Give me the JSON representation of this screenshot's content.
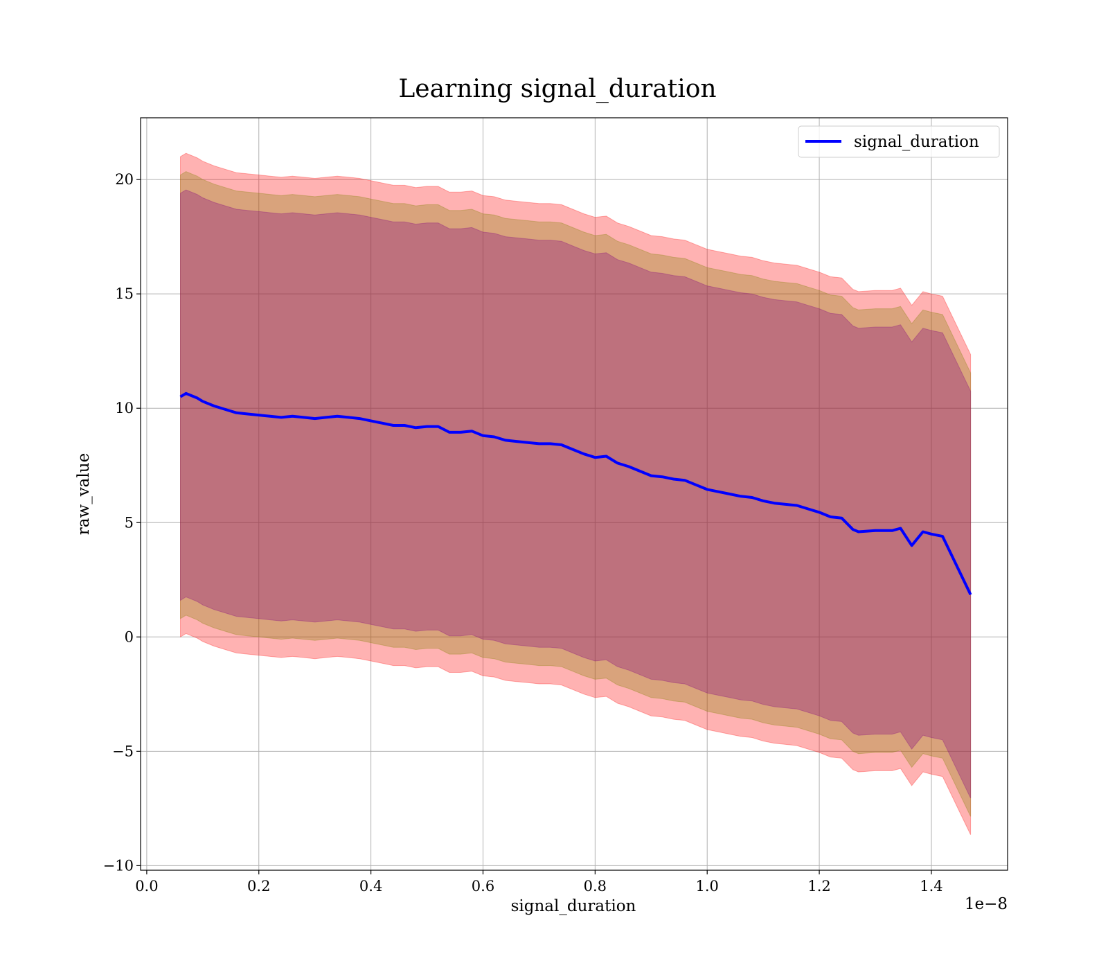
{
  "chart_data": {
    "type": "line",
    "title": "Learning signal_duration",
    "xlabel": "signal_duration",
    "ylabel": "raw_value",
    "x_scale_label": "1e−8",
    "xlim": [
      -0.011,
      1.536
    ],
    "ylim": [
      -10.2,
      22.7
    ],
    "x_ticks": [
      0.0,
      0.2,
      0.4,
      0.6,
      0.8,
      1.0,
      1.2,
      1.4
    ],
    "x_tick_labels": [
      "0.0",
      "0.2",
      "0.4",
      "0.6",
      "0.8",
      "1.0",
      "1.2",
      "1.4"
    ],
    "y_ticks": [
      -10,
      -5,
      0,
      5,
      10,
      15,
      20
    ],
    "y_tick_labels": [
      "−10",
      "−5",
      "0",
      "5",
      "10",
      "15",
      "20"
    ],
    "grid": true,
    "legend_position": "top-right",
    "series": [
      {
        "name": "signal_duration",
        "color": "#0000ff",
        "x": [
          0.06,
          0.07,
          0.08,
          0.09,
          0.1,
          0.12,
          0.14,
          0.16,
          0.18,
          0.2,
          0.22,
          0.24,
          0.26,
          0.28,
          0.3,
          0.32,
          0.34,
          0.36,
          0.38,
          0.4,
          0.42,
          0.44,
          0.46,
          0.48,
          0.5,
          0.52,
          0.54,
          0.56,
          0.58,
          0.6,
          0.62,
          0.64,
          0.66,
          0.68,
          0.7,
          0.72,
          0.74,
          0.76,
          0.78,
          0.8,
          0.82,
          0.84,
          0.86,
          0.88,
          0.9,
          0.92,
          0.94,
          0.96,
          0.98,
          1.0,
          1.02,
          1.04,
          1.06,
          1.08,
          1.1,
          1.12,
          1.14,
          1.16,
          1.18,
          1.2,
          1.22,
          1.24,
          1.26,
          1.27,
          1.3,
          1.33,
          1.345,
          1.365,
          1.385,
          1.4,
          1.42,
          1.47
        ],
        "y": [
          10.5,
          10.65,
          10.55,
          10.45,
          10.3,
          10.1,
          9.95,
          9.8,
          9.75,
          9.7,
          9.65,
          9.6,
          9.65,
          9.6,
          9.55,
          9.6,
          9.65,
          9.6,
          9.55,
          9.45,
          9.35,
          9.25,
          9.25,
          9.15,
          9.2,
          9.2,
          8.95,
          8.95,
          9.0,
          8.8,
          8.75,
          8.6,
          8.55,
          8.5,
          8.45,
          8.45,
          8.4,
          8.2,
          8.0,
          7.85,
          7.9,
          7.6,
          7.45,
          7.25,
          7.05,
          7.0,
          6.9,
          6.85,
          6.65,
          6.45,
          6.35,
          6.25,
          6.15,
          6.1,
          5.95,
          5.85,
          5.8,
          5.75,
          5.6,
          5.45,
          5.25,
          5.2,
          4.7,
          4.6,
          4.65,
          4.65,
          4.75,
          4.0,
          4.6,
          4.5,
          4.4,
          1.85
        ]
      }
    ],
    "bands": [
      {
        "color": "#ff0000",
        "opacity": 0.3,
        "upper_offset": 10.5,
        "lower_offset": 10.5
      },
      {
        "color": "#808000",
        "opacity": 0.3,
        "upper_offset": 9.7,
        "lower_offset": 9.7
      },
      {
        "color": "#800080",
        "opacity": 0.3,
        "upper_offset": 8.9,
        "lower_offset": 8.9
      }
    ]
  }
}
